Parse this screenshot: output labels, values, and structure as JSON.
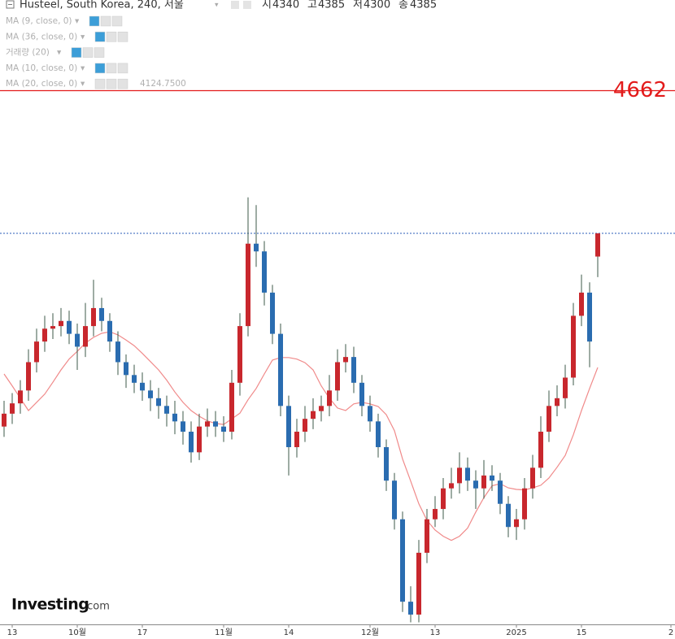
{
  "chart_data": {
    "type": "candlestick",
    "title": "Husteel, South Korea, 240, 서울",
    "ohlc_labels": [
      "시",
      "고",
      "저",
      "종"
    ],
    "open": [
      4010,
      4035,
      4055,
      4080,
      4135,
      4175,
      4200,
      4205,
      4215,
      4190,
      4165,
      4205,
      4240,
      4215,
      4175,
      4135,
      4110,
      4095,
      4080,
      4065,
      4050,
      4035,
      4020,
      4000,
      3960,
      4010,
      4020,
      4010,
      4000,
      4095,
      4205,
      4365,
      4350,
      4270,
      4190,
      4050,
      3970,
      4000,
      4025,
      4040,
      4050,
      4080,
      4135,
      4145,
      4095,
      4050,
      4020,
      3970,
      3905,
      3830,
      3670,
      3645,
      3765,
      3830,
      3850,
      3890,
      3900,
      3930,
      3905,
      3890,
      3915,
      3905,
      3860,
      3815,
      3830,
      3890,
      3930,
      4000,
      4050,
      4065,
      4105,
      4225,
      4270,
      4340
    ],
    "high": [
      4060,
      4075,
      4100,
      4160,
      4200,
      4225,
      4230,
      4240,
      4235,
      4210,
      4250,
      4295,
      4260,
      4230,
      4195,
      4150,
      4130,
      4115,
      4100,
      4085,
      4070,
      4060,
      4040,
      4020,
      4035,
      4045,
      4040,
      4030,
      4120,
      4230,
      4455,
      4440,
      4370,
      4285,
      4210,
      4070,
      4025,
      4050,
      4065,
      4070,
      4110,
      4160,
      4170,
      4165,
      4110,
      4070,
      4035,
      3985,
      3920,
      3845,
      3700,
      3790,
      3850,
      3875,
      3910,
      3930,
      3960,
      3950,
      3925,
      3945,
      3935,
      3920,
      3875,
      3850,
      3910,
      3955,
      4030,
      4080,
      4090,
      4130,
      4250,
      4305,
      4290,
      4385
    ],
    "low": [
      3990,
      4015,
      4035,
      4060,
      4115,
      4155,
      4180,
      4185,
      4170,
      4120,
      4145,
      4185,
      4195,
      4155,
      4110,
      4085,
      4075,
      4060,
      4040,
      4025,
      4010,
      3995,
      3975,
      3940,
      3945,
      3990,
      3990,
      3980,
      3985,
      4070,
      4185,
      4320,
      4245,
      4170,
      4030,
      3915,
      3950,
      3980,
      4005,
      4020,
      4030,
      4060,
      4115,
      4075,
      4030,
      4000,
      3950,
      3885,
      3810,
      3650,
      3630,
      3630,
      3745,
      3815,
      3830,
      3870,
      3880,
      3885,
      3850,
      3870,
      3885,
      3840,
      3795,
      3790,
      3810,
      3870,
      3910,
      3980,
      4030,
      4045,
      4090,
      4205,
      4125,
      4300
    ],
    "close": [
      4035,
      4055,
      4080,
      4135,
      4175,
      4200,
      4205,
      4215,
      4190,
      4165,
      4205,
      4240,
      4215,
      4175,
      4135,
      4110,
      4095,
      4080,
      4065,
      4050,
      4035,
      4020,
      4000,
      3960,
      4010,
      4020,
      4010,
      4000,
      4095,
      4205,
      4365,
      4350,
      4270,
      4190,
      4050,
      3970,
      4000,
      4025,
      4040,
      4050,
      4080,
      4135,
      4145,
      4095,
      4050,
      4020,
      3970,
      3905,
      3830,
      3670,
      3645,
      3765,
      3830,
      3850,
      3890,
      3900,
      3930,
      3905,
      3890,
      3915,
      3905,
      3860,
      3815,
      3830,
      3890,
      3930,
      4000,
      4050,
      4065,
      4105,
      4225,
      4270,
      4175,
      4385
    ],
    "up_color": "#c8272d",
    "down_color": "#2a6cb0",
    "wick_color": "#3d5a4a",
    "xlim": [
      -0.5,
      82.5
    ],
    "ylim": [
      3626,
      4838
    ],
    "xticks": [
      {
        "value": 1,
        "label": "13"
      },
      {
        "value": 9,
        "label": "10월"
      },
      {
        "value": 17,
        "label": "17"
      },
      {
        "value": 27,
        "label": "11월"
      },
      {
        "value": 35,
        "label": "14"
      },
      {
        "value": 45,
        "label": "12월"
      },
      {
        "value": 53,
        "label": "13"
      },
      {
        "value": 63,
        "label": "2025"
      },
      {
        "value": 71,
        "label": "15"
      },
      {
        "value": 82,
        "label": "2"
      }
    ],
    "indicators": [
      {
        "name": "MA (9, close, 0)"
      },
      {
        "name": "MA (36, close, 0)"
      },
      {
        "name": "거래량 (20)"
      },
      {
        "name": "MA (10, close, 0)"
      },
      {
        "name": "MA (20, close, 0)",
        "color": "#f08a8a",
        "value_label": "4124.7500",
        "values": [
          4112,
          4089,
          4065,
          4041,
          4057,
          4073,
          4096,
          4120,
          4141,
          4156,
          4172,
          4183,
          4191,
          4194,
          4188,
          4178,
          4167,
          4152,
          4136,
          4120,
          4100,
          4077,
          4057,
          4041,
          4030,
          4021,
          4016,
          4014,
          4025,
          4036,
          4062,
          4084,
          4112,
          4139,
          4144,
          4144,
          4141,
          4134,
          4120,
          4089,
          4065,
          4046,
          4041,
          4054,
          4057,
          4054,
          4049,
          4033,
          4002,
          3947,
          3904,
          3860,
          3828,
          3809,
          3797,
          3789,
          3797,
          3813,
          3844,
          3872,
          3895,
          3899,
          3891,
          3888,
          3887,
          3891,
          3896,
          3910,
          3931,
          3954,
          3994,
          4041,
          4084,
          4124.75
        ]
      }
    ],
    "hlines": [
      {
        "value": 4662,
        "color": "#e31b1b"
      }
    ],
    "last_price_line_color": "#2b5cb8",
    "watermark": [
      "Investing",
      ".com"
    ]
  }
}
